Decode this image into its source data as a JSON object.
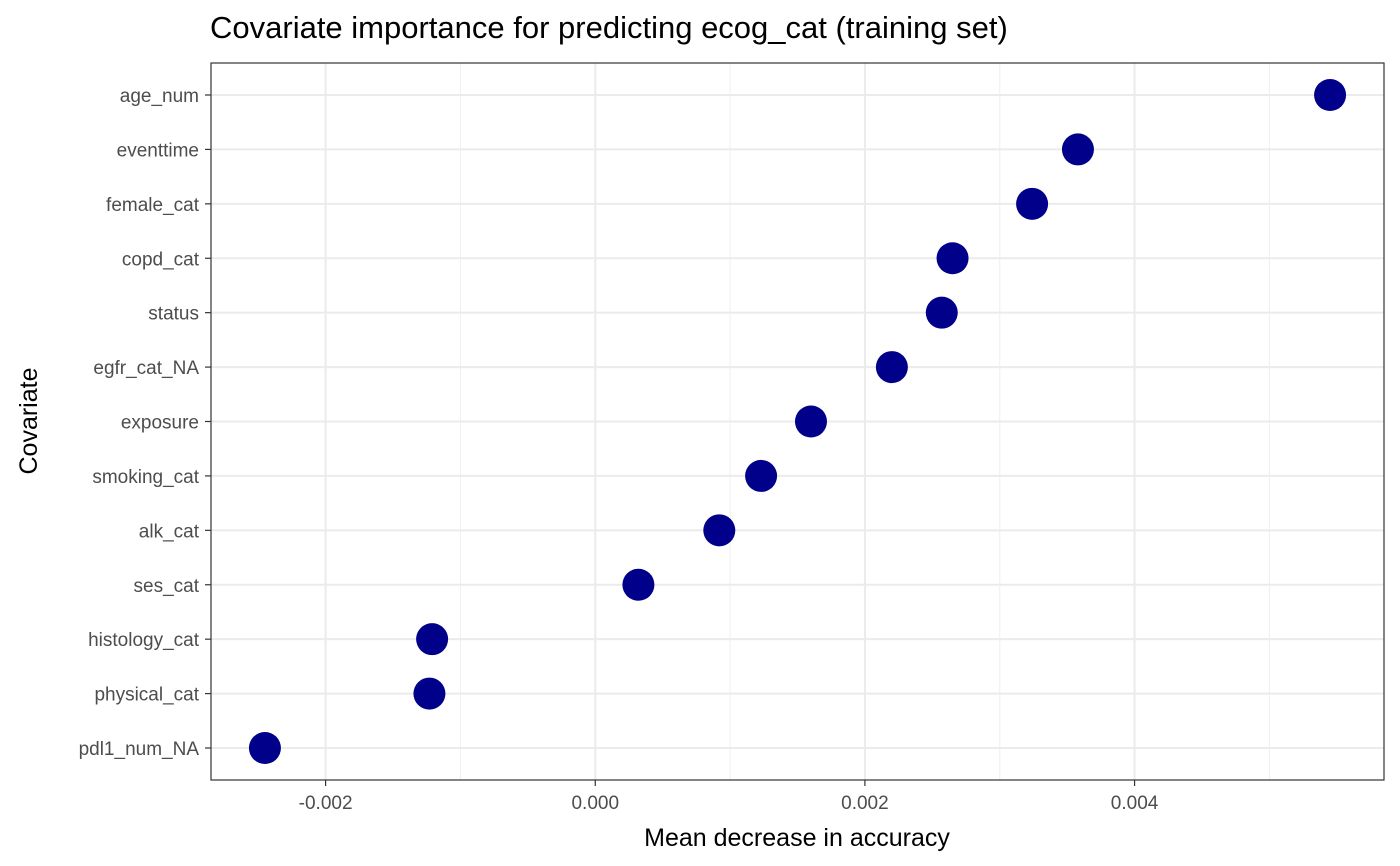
{
  "chart_data": {
    "type": "scatter",
    "title": "Covariate importance for predicting ecog_cat (training set)",
    "xlabel": "Mean decrease in accuracy",
    "ylabel": "Covariate",
    "xlim": [
      -0.00285,
      0.00585
    ],
    "x_ticks": [
      -0.002,
      0.0,
      0.002,
      0.004
    ],
    "x_tick_labels": [
      "-0.002",
      "0.000",
      "0.002",
      "0.004"
    ],
    "grid": true,
    "point_color": "#00008B",
    "categories": [
      "age_num",
      "eventtime",
      "female_cat",
      "copd_cat",
      "status",
      "egfr_cat_NA",
      "exposure",
      "smoking_cat",
      "alk_cat",
      "ses_cat",
      "histology_cat",
      "physical_cat",
      "pdl1_num_NA"
    ],
    "values": [
      0.00545,
      0.00358,
      0.00324,
      0.00265,
      0.00257,
      0.0022,
      0.0016,
      0.00123,
      0.00092,
      0.00032,
      -0.00121,
      -0.00123,
      -0.00245
    ]
  }
}
